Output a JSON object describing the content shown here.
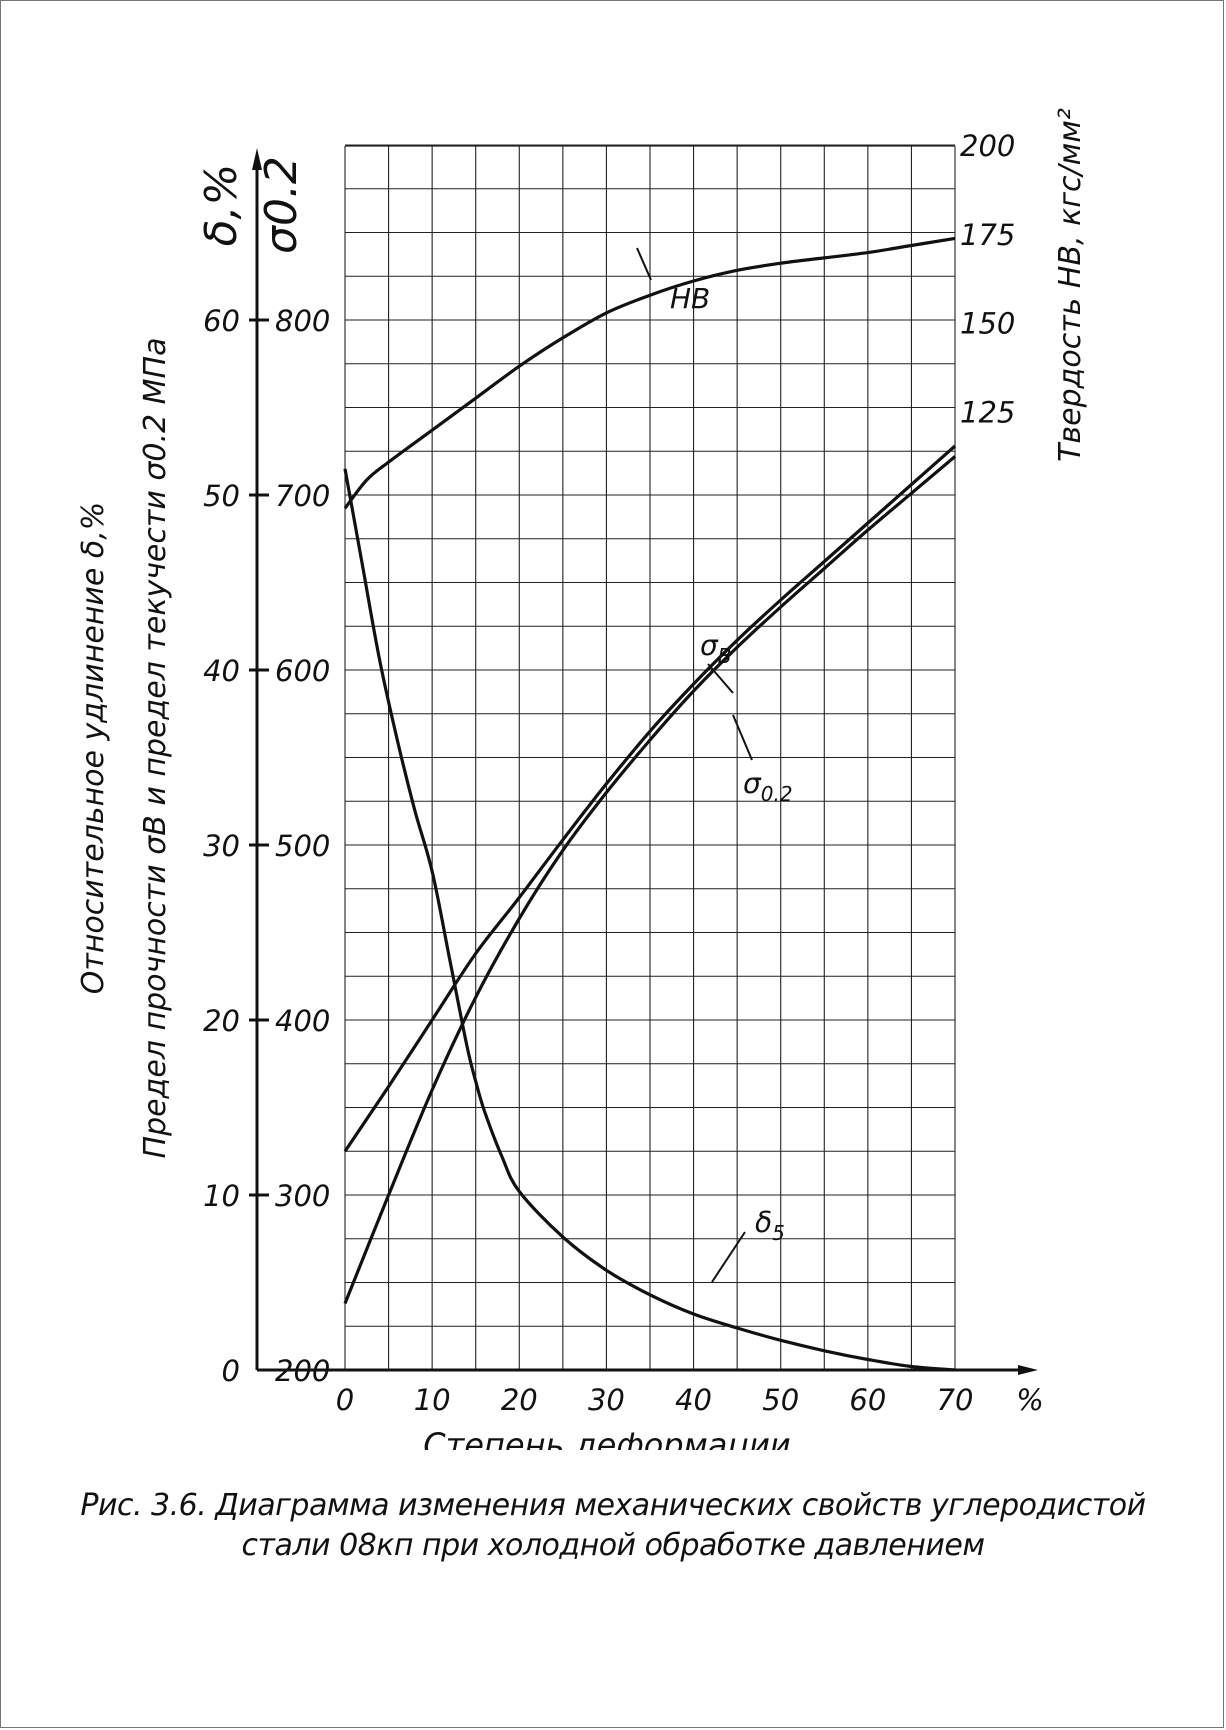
{
  "caption": {
    "line1": "Рис. 3.6. Диаграмма изменения механических свойств углеродистой",
    "line2": "стали 08кп при холодной обработке давлением"
  },
  "colors": {
    "ink": "#111111",
    "grid": "#222222",
    "background": "#ffffff"
  },
  "chart_data": {
    "type": "line",
    "grid": true,
    "xlabel": "Степень деформации",
    "x_unit": "%",
    "xlim": [
      0,
      70
    ],
    "x_ticks": [
      0,
      10,
      20,
      30,
      40,
      50,
      60,
      70
    ],
    "y_axes": {
      "elongation": {
        "header": "δ,%",
        "ticks": [
          0,
          10,
          20,
          30,
          40,
          50,
          60
        ],
        "range": [
          0,
          60
        ]
      },
      "strength": {
        "header": "σ0.2",
        "ticks": [
          200,
          300,
          400,
          500,
          600,
          700,
          800
        ],
        "range": [
          200,
          800
        ]
      },
      "hardness": {
        "label": "Твердость HB, кгс/мм²",
        "ticks": [
          125,
          150,
          175,
          200
        ],
        "range": [
          75,
          200
        ]
      },
      "left_label_line1": "Относительное удлинение δ,%",
      "left_label_line2": "Предел прочности σB и предел текучести σ0.2 МПа"
    },
    "series": [
      {
        "name": "HB",
        "axis": "hardness",
        "x": [
          0,
          2.5,
          5,
          10,
          15,
          20,
          25,
          30,
          35,
          40,
          45,
          50,
          55,
          60,
          65,
          70
        ],
        "y": [
          98,
          106,
          111,
          120,
          129,
          138,
          146,
          153,
          158,
          162,
          165,
          167,
          168.5,
          170,
          172,
          174
        ]
      },
      {
        "name": "σB",
        "axis": "strength",
        "x": [
          0,
          5,
          10,
          15,
          20,
          25,
          30,
          35,
          40,
          45,
          50,
          55,
          60,
          65,
          70
        ],
        "y": [
          325,
          362,
          400,
          438,
          470,
          503,
          535,
          565,
          592,
          617,
          640,
          662,
          684,
          706,
          728
        ]
      },
      {
        "name": "σ0.2",
        "axis": "strength",
        "x": [
          0,
          5,
          10,
          15,
          20,
          25,
          30,
          35,
          40,
          45,
          50,
          55,
          60,
          65,
          70
        ],
        "y": [
          238,
          300,
          360,
          413,
          458,
          497,
          530,
          560,
          588,
          613,
          636,
          658,
          680,
          701,
          722
        ]
      },
      {
        "name": "δ5",
        "axis": "elongation",
        "x": [
          0,
          2,
          4,
          6,
          8,
          10,
          12,
          14,
          15,
          16,
          18,
          20,
          25,
          30,
          35,
          40,
          45,
          50,
          55,
          60,
          65,
          70
        ],
        "y": [
          51.5,
          46,
          40.5,
          36,
          32,
          28.5,
          23.5,
          18.5,
          16.5,
          14.8,
          12.2,
          10.2,
          7.6,
          5.7,
          4.3,
          3.2,
          2.4,
          1.7,
          1.1,
          0.6,
          0.2,
          0
        ]
      }
    ],
    "annotations": [
      "HB",
      "σB",
      "σ0.2",
      "δ5"
    ]
  }
}
